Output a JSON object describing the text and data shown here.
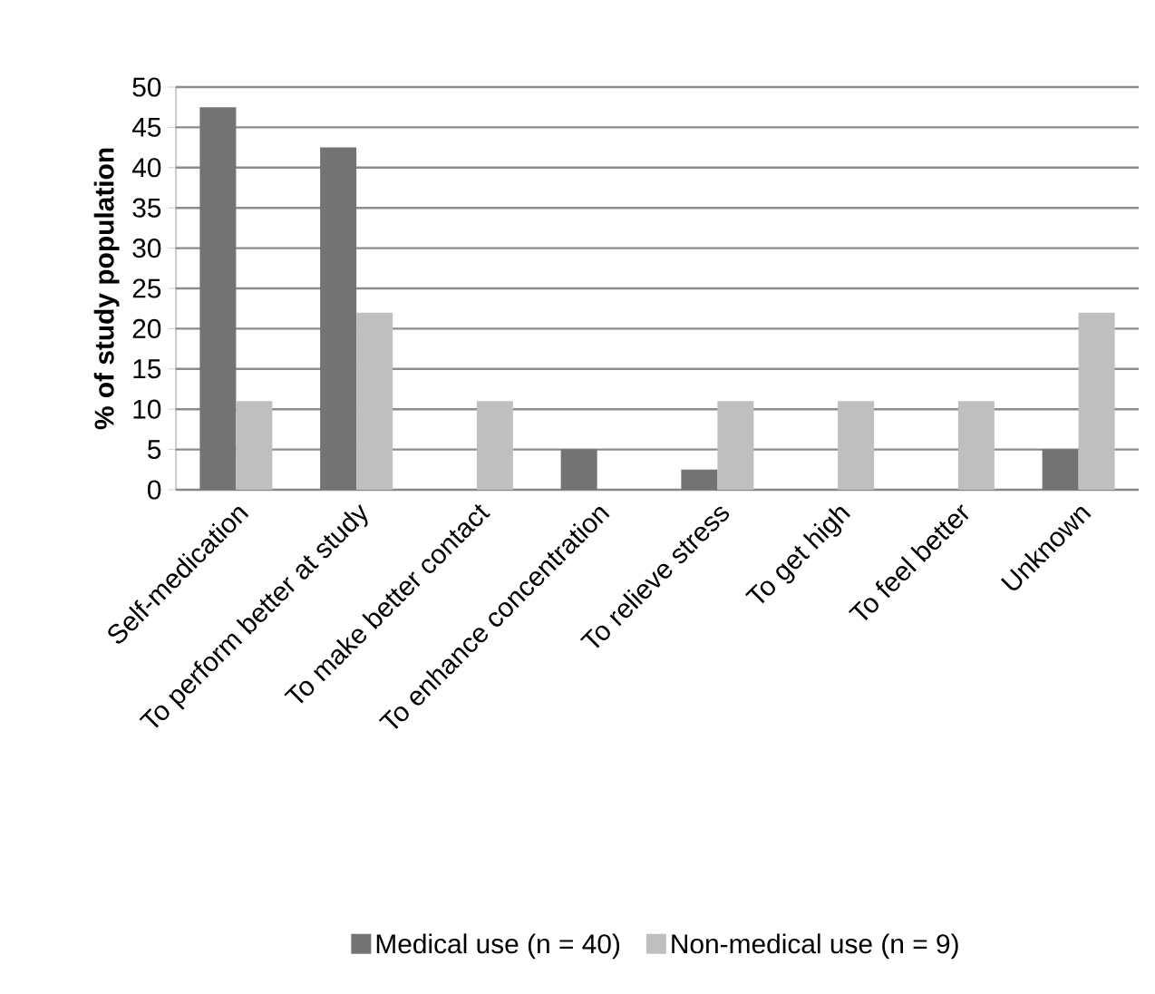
{
  "chart_data": {
    "type": "bar",
    "ylabel": "% of study population",
    "categories": [
      "Self-medication",
      "To perform better at study",
      "To make better contact",
      "To enhance concentration",
      "To relieve stress",
      "To get high",
      "To feel better",
      "Unknown"
    ],
    "series": [
      {
        "name": "Medical use (n = 40)",
        "color": "#737373",
        "values": [
          47.5,
          42.5,
          0,
          5,
          2.5,
          0,
          0,
          5
        ]
      },
      {
        "name": "Non-medical use (n = 9)",
        "color": "#bfbfbf",
        "values": [
          11,
          22,
          11,
          0,
          11,
          11,
          11,
          22
        ]
      }
    ],
    "ylim": [
      0,
      50
    ],
    "yticks": [
      0,
      5,
      10,
      15,
      20,
      25,
      30,
      35,
      40,
      45,
      50
    ],
    "grid": "y",
    "legend": "bottom"
  }
}
